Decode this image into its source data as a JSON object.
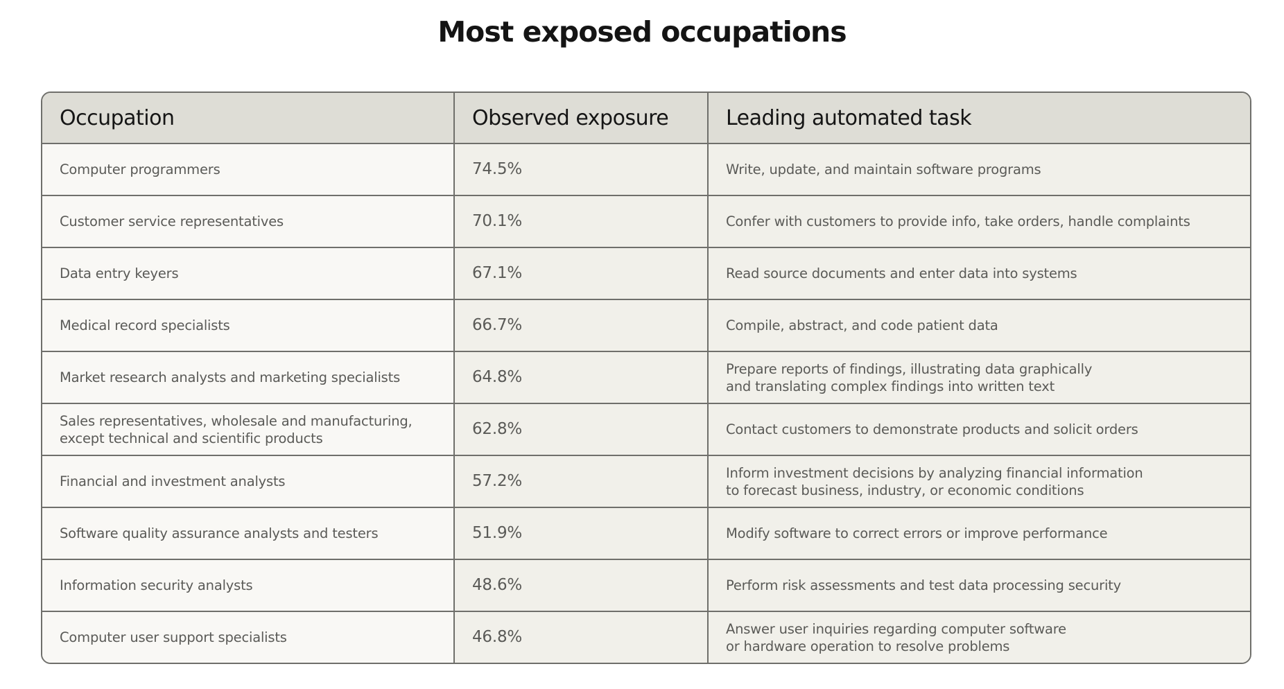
{
  "header": {
    "title": "Most exposed occupations"
  },
  "table": {
    "columns": [
      "Occupation",
      "Observed exposure",
      "Leading automated task"
    ],
    "rows": [
      [
        "Computer programmers",
        "74.5%",
        "Write, update, and maintain software programs"
      ],
      [
        "Customer service representatives",
        "70.1%",
        "Confer with customers to provide info, take orders, handle complaints"
      ],
      [
        "Data entry keyers",
        "67.1%",
        "Read source documents and enter data into systems"
      ],
      [
        "Medical record specialists",
        "66.7%",
        "Compile, abstract, and code patient data"
      ],
      [
        "Market research analysts and marketing specialists",
        "64.8%",
        "Prepare reports of findings, illustrating data graphically\nand translating complex findings into written text"
      ],
      [
        "Sales representatives, wholesale and manufacturing,\nexcept technical and scientific products",
        "62.8%",
        "Contact customers to demonstrate products and solicit orders"
      ],
      [
        "Financial and investment analysts",
        "57.2%",
        "Inform investment decisions by analyzing financial information\nto forecast business, industry, or economic conditions"
      ],
      [
        "Software quality assurance analysts and testers",
        "51.9%",
        "Modify software to correct errors or improve performance"
      ],
      [
        "Information security analysts",
        "48.6%",
        "Perform risk assessments and test data processing security"
      ],
      [
        "Computer user support specialists",
        "46.8%",
        "Answer user inquiries regarding computer software\nor hardware operation to resolve problems"
      ]
    ]
  }
}
